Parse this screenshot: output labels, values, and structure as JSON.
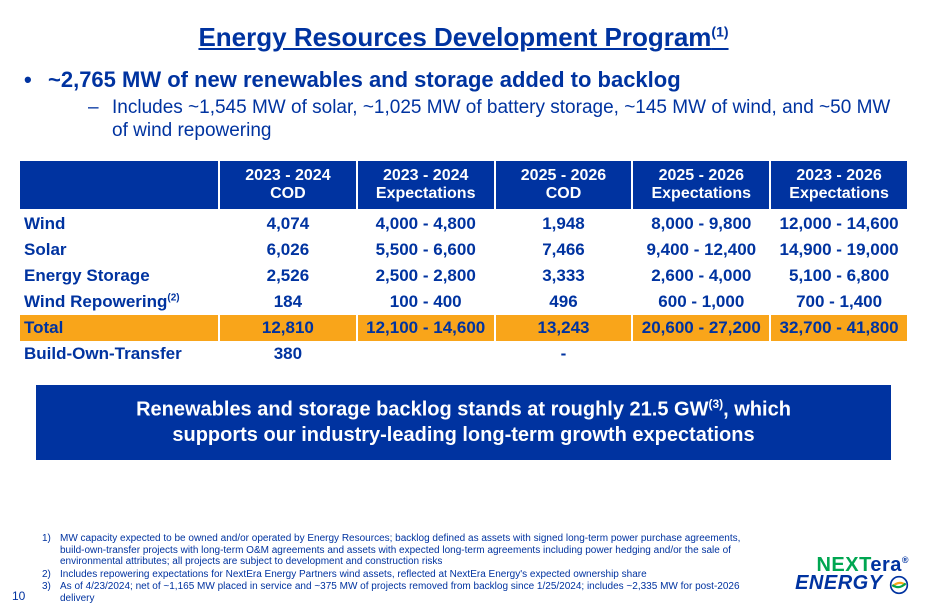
{
  "title": "Energy Resources Development Program",
  "title_sup": "(1)",
  "bullet_main": "~2,765 MW of new renewables and storage added to backlog",
  "bullet_sub": "Includes ~1,545 MW of solar, ~1,025 MW of battery storage, ~145 MW of wind, and ~50 MW of wind repowering",
  "table": {
    "columns": [
      "",
      "2023 - 2024 COD",
      "2023 - 2024 Expectations",
      "2025 - 2026 COD",
      "2025 - 2026 Expectations",
      "2023 - 2026 Expectations"
    ],
    "rows": [
      {
        "label": "Wind",
        "cells": [
          "4,074",
          "4,000 - 4,800",
          "1,948",
          "8,000 - 9,800",
          "12,000 - 14,600"
        ]
      },
      {
        "label": "Solar",
        "cells": [
          "6,026",
          "5,500 - 6,600",
          "7,466",
          "9,400 - 12,400",
          "14,900 - 19,000"
        ]
      },
      {
        "label": "Energy Storage",
        "cells": [
          "2,526",
          "2,500 - 2,800",
          "3,333",
          "2,600 - 4,000",
          "5,100 - 6,800"
        ]
      },
      {
        "label": "Wind Repowering",
        "label_sup": "(2)",
        "cells": [
          "184",
          "100 - 400",
          "496",
          "600 - 1,000",
          "700 - 1,400"
        ]
      },
      {
        "label": "Total",
        "total": true,
        "cells": [
          "12,810",
          "12,100 - 14,600",
          "13,243",
          "20,600 - 27,200",
          "32,700 - 41,800"
        ]
      },
      {
        "label": "Build-Own-Transfer",
        "cells": [
          "380",
          "",
          "-",
          "",
          ""
        ]
      }
    ],
    "header_bg": "#0033a0",
    "header_fg": "#ffffff",
    "total_bg": "#f9a51a",
    "text_color": "#0033a0",
    "font_size": 17
  },
  "callout_line1": "Renewables and storage backlog stands at roughly 21.5 GW",
  "callout_sup": "(3)",
  "callout_line1b": ", which",
  "callout_line2": "supports our industry-leading long-term growth expectations",
  "footnotes": [
    {
      "num": "1)",
      "text": "MW capacity expected to be owned and/or operated by Energy Resources; backlog defined as assets with signed long-term power purchase agreements, build-own-transfer projects with long-term O&M agreements and assets with expected long-term agreements including power hedging and/or the sale of environmental attributes; all projects are subject to development and construction risks"
    },
    {
      "num": "2)",
      "text": "Includes repowering expectations for NextEra Energy Partners wind assets, reflected at NextEra Energy's expected ownership share"
    },
    {
      "num": "3)",
      "text": "As of 4/23/2024; net of ~1,165 MW placed in service and ~375 MW of projects removed from backlog since 1/25/2024; includes ~2,335 MW for post-2026 delivery"
    }
  ],
  "page_number": "10",
  "logo": {
    "line1a": "NEXT",
    "line1b": "era",
    "reg": "®",
    "line2": "ENERGY"
  },
  "colors": {
    "brand_blue": "#0033a0",
    "brand_green": "#00a651",
    "highlight": "#f9a51a",
    "bg": "#ffffff"
  }
}
